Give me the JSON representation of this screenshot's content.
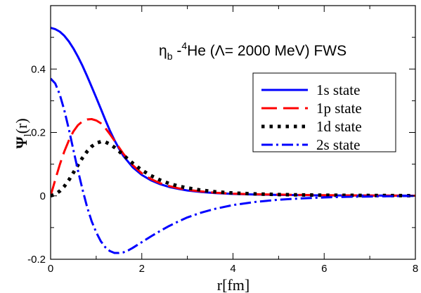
{
  "chart_data": {
    "type": "line",
    "title": "",
    "annotation": {
      "eta": "η",
      "eta_sub": "b",
      "dash": " -",
      "he_sup": "4",
      "rest": "He (Λ= 2000 MeV) FWS"
    },
    "xlabel": "r[fm]",
    "ylabel": {
      "main": "Ψ",
      "sub": "l",
      "tail": "(r)"
    },
    "xlim": [
      0,
      8
    ],
    "ylim": [
      -0.2,
      0.6
    ],
    "xticks": [
      0,
      2,
      4,
      6,
      8
    ],
    "xtick_labels": [
      "0",
      "2",
      "4",
      "6",
      "8"
    ],
    "yticks": [
      -0.2,
      0,
      0.2,
      0.4
    ],
    "ytick_labels": [
      "-0.2",
      "0",
      "0.2",
      "0.4"
    ],
    "grid": false,
    "legend_position": "upper-right",
    "series": [
      {
        "name": "1s state",
        "color": "#0000ff",
        "dash": "",
        "x": [
          0,
          0.1,
          0.2,
          0.3,
          0.4,
          0.5,
          0.6,
          0.7,
          0.8,
          0.9,
          1.0,
          1.1,
          1.2,
          1.3,
          1.4,
          1.5,
          1.6,
          1.8,
          2.0,
          2.2,
          2.4,
          2.6,
          2.8,
          3.0,
          3.3,
          3.6,
          4.0,
          4.5,
          5.0,
          5.5,
          6.0,
          7.0,
          8.0
        ],
        "y": [
          0.53,
          0.526,
          0.518,
          0.505,
          0.487,
          0.465,
          0.439,
          0.41,
          0.378,
          0.344,
          0.31,
          0.275,
          0.24,
          0.206,
          0.176,
          0.149,
          0.125,
          0.09,
          0.066,
          0.049,
          0.037,
          0.028,
          0.022,
          0.017,
          0.012,
          0.009,
          0.006,
          0.004,
          0.003,
          0.002,
          0.0015,
          0.001,
          0.0005
        ]
      },
      {
        "name": "1p state",
        "color": "#ff0000",
        "dash": "22,9",
        "x": [
          0,
          0.1,
          0.2,
          0.3,
          0.4,
          0.5,
          0.6,
          0.7,
          0.8,
          0.9,
          1.0,
          1.1,
          1.2,
          1.3,
          1.4,
          1.5,
          1.6,
          1.8,
          2.0,
          2.2,
          2.4,
          2.6,
          2.8,
          3.0,
          3.3,
          3.6,
          4.0,
          4.5,
          5.0,
          5.5,
          6.0,
          7.0,
          8.0
        ],
        "y": [
          0.0,
          0.05,
          0.098,
          0.14,
          0.175,
          0.203,
          0.223,
          0.235,
          0.241,
          0.242,
          0.238,
          0.229,
          0.214,
          0.195,
          0.174,
          0.153,
          0.132,
          0.097,
          0.071,
          0.053,
          0.04,
          0.031,
          0.024,
          0.019,
          0.014,
          0.01,
          0.007,
          0.005,
          0.004,
          0.003,
          0.002,
          0.001,
          0.0005
        ]
      },
      {
        "name": "1d state",
        "color": "#000000",
        "dash": "4.5,7",
        "x": [
          0,
          0.1,
          0.2,
          0.3,
          0.4,
          0.5,
          0.6,
          0.7,
          0.8,
          0.9,
          1.0,
          1.1,
          1.2,
          1.3,
          1.4,
          1.5,
          1.6,
          1.8,
          2.0,
          2.2,
          2.4,
          2.6,
          2.8,
          3.0,
          3.3,
          3.6,
          4.0,
          4.5,
          5.0,
          5.5,
          6.0,
          7.0,
          8.0
        ],
        "y": [
          0.0,
          0.005,
          0.015,
          0.03,
          0.05,
          0.073,
          0.097,
          0.12,
          0.14,
          0.156,
          0.166,
          0.171,
          0.17,
          0.163,
          0.153,
          0.141,
          0.128,
          0.103,
          0.081,
          0.064,
          0.05,
          0.039,
          0.031,
          0.025,
          0.018,
          0.013,
          0.009,
          0.006,
          0.004,
          0.003,
          0.002,
          0.0012,
          0.0006
        ]
      },
      {
        "name": "2s state",
        "color": "#0000ff",
        "dash": "16,5,3,5",
        "x": [
          0,
          0.1,
          0.2,
          0.3,
          0.4,
          0.5,
          0.6,
          0.7,
          0.8,
          0.9,
          1.0,
          1.1,
          1.2,
          1.3,
          1.4,
          1.5,
          1.6,
          1.7,
          1.8,
          1.9,
          2.0,
          2.2,
          2.4,
          2.6,
          2.8,
          3.0,
          3.3,
          3.6,
          4.0,
          4.5,
          5.0,
          5.5,
          6.0,
          6.5,
          7.0,
          7.5,
          8.0
        ],
        "y": [
          0.37,
          0.355,
          0.32,
          0.27,
          0.21,
          0.145,
          0.08,
          0.02,
          -0.035,
          -0.08,
          -0.115,
          -0.143,
          -0.162,
          -0.174,
          -0.18,
          -0.18,
          -0.178,
          -0.172,
          -0.164,
          -0.155,
          -0.146,
          -0.128,
          -0.111,
          -0.095,
          -0.081,
          -0.068,
          -0.053,
          -0.041,
          -0.029,
          -0.019,
          -0.012,
          -0.008,
          -0.005,
          -0.003,
          -0.002,
          -0.001,
          0.0
        ]
      }
    ]
  }
}
